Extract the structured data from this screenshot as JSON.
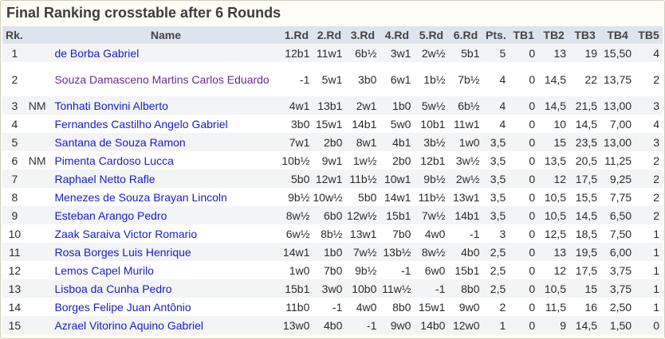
{
  "title": "Final Ranking crosstable after 6 Rounds",
  "headers": {
    "rk": "Rk.",
    "name": "Name",
    "rounds": [
      "1.Rd",
      "2.Rd",
      "3.Rd",
      "4.Rd",
      "5.Rd",
      "6.Rd"
    ],
    "pts": "Pts.",
    "tb": [
      "TB1",
      "TB2",
      "TB3",
      "TB4",
      "TB5"
    ]
  },
  "rows": [
    {
      "rk": "1",
      "title": "",
      "name": "de Borba  Gabriel",
      "rounds": [
        "12b1",
        "11w1",
        "6b½",
        "3w1",
        "2w½",
        "5b1"
      ],
      "pts": "5",
      "tb": [
        "0",
        "13",
        "19",
        "15,50",
        "4"
      ]
    },
    {
      "rk": "2",
      "title": "",
      "name": "Souza Damasceno Martins Carlos Eduardo",
      "rounds": [
        "-1",
        "5w1",
        "3b0",
        "6w1",
        "1b½",
        "7b½"
      ],
      "pts": "4",
      "tb": [
        "0",
        "14,5",
        "22",
        "13,75",
        "2"
      ]
    },
    {
      "rk": "3",
      "title": "NM",
      "name": "Tonhati Bonvini Alberto",
      "rounds": [
        "4w1",
        "13b1",
        "2w1",
        "1b0",
        "5w½",
        "6b½"
      ],
      "pts": "4",
      "tb": [
        "0",
        "14,5",
        "21,5",
        "13,00",
        "3"
      ]
    },
    {
      "rk": "4",
      "title": "",
      "name": "Fernandes Castilho Angelo Gabriel",
      "rounds": [
        "3b0",
        "15w1",
        "14b1",
        "5w0",
        "10b1",
        "11w1"
      ],
      "pts": "4",
      "tb": [
        "0",
        "10",
        "14,5",
        "7,00",
        "4"
      ]
    },
    {
      "rk": "5",
      "title": "",
      "name": "Santana de Souza Ramon",
      "rounds": [
        "7w1",
        "2b0",
        "8w1",
        "4b1",
        "3b½",
        "1w0"
      ],
      "pts": "3,5",
      "tb": [
        "0",
        "15",
        "23,5",
        "13,00",
        "3"
      ]
    },
    {
      "rk": "6",
      "title": "NM",
      "name": "Pimenta Cardoso Lucca",
      "rounds": [
        "10b½",
        "9w1",
        "1w½",
        "2b0",
        "12b1",
        "3w½"
      ],
      "pts": "3,5",
      "tb": [
        "0",
        "13,5",
        "20,5",
        "11,25",
        "2"
      ]
    },
    {
      "rk": "7",
      "title": "",
      "name": "Raphael Netto Rafle",
      "rounds": [
        "5b0",
        "12w1",
        "11b½",
        "10w1",
        "9b½",
        "2w½"
      ],
      "pts": "3,5",
      "tb": [
        "0",
        "12",
        "17,5",
        "9,25",
        "2"
      ]
    },
    {
      "rk": "8",
      "title": "",
      "name": "Menezes de Souza Brayan Lincoln",
      "rounds": [
        "9b½",
        "10w½",
        "5b0",
        "14w1",
        "11b½",
        "13w1"
      ],
      "pts": "3,5",
      "tb": [
        "0",
        "10,5",
        "15,5",
        "7,75",
        "2"
      ]
    },
    {
      "rk": "9",
      "title": "",
      "name": "Esteban Arango Pedro",
      "rounds": [
        "8w½",
        "6b0",
        "12w½",
        "15b1",
        "7w½",
        "14b1"
      ],
      "pts": "3,5",
      "tb": [
        "0",
        "10,5",
        "14,5",
        "6,50",
        "2"
      ]
    },
    {
      "rk": "10",
      "title": "",
      "name": "Zaak Saraiva  Victor Romario",
      "rounds": [
        "6w½",
        "8b½",
        "13w1",
        "7b0",
        "4w0",
        "-1"
      ],
      "pts": "3",
      "tb": [
        "0",
        "12,5",
        "18,5",
        "7,50",
        "1"
      ]
    },
    {
      "rk": "11",
      "title": "",
      "name": "Rosa Borges Luis Henrique",
      "rounds": [
        "14w1",
        "1b0",
        "7w½",
        "13b½",
        "8w½",
        "4b0"
      ],
      "pts": "2,5",
      "tb": [
        "0",
        "13",
        "19,5",
        "6,00",
        "1"
      ]
    },
    {
      "rk": "12",
      "title": "",
      "name": "Lemos Capel Murilo",
      "rounds": [
        "1w0",
        "7b0",
        "9b½",
        "-1",
        "6w0",
        "15b1"
      ],
      "pts": "2,5",
      "tb": [
        "0",
        "12",
        "17,5",
        "3,75",
        "1"
      ]
    },
    {
      "rk": "13",
      "title": "",
      "name": "Lisboa da Cunha Pedro",
      "rounds": [
        "15b1",
        "3w0",
        "10b0",
        "11w½",
        "-1",
        "8b0"
      ],
      "pts": "2,5",
      "tb": [
        "0",
        "10,5",
        "15",
        "3,75",
        "1"
      ]
    },
    {
      "rk": "14",
      "title": "",
      "name": "Borges Felipe Juan Antônio",
      "rounds": [
        "11b0",
        "-1",
        "4w0",
        "8b0",
        "15w1",
        "9w0"
      ],
      "pts": "2",
      "tb": [
        "0",
        "11,5",
        "16",
        "2,50",
        "1"
      ]
    },
    {
      "rk": "15",
      "title": "",
      "name": "Azrael Vitorino Aquino  Gabriel",
      "rounds": [
        "13w0",
        "4b0",
        "-1",
        "9w0",
        "14b0",
        "12w0"
      ],
      "pts": "1",
      "tb": [
        "0",
        "9",
        "14,5",
        "1,50",
        "0"
      ]
    }
  ]
}
